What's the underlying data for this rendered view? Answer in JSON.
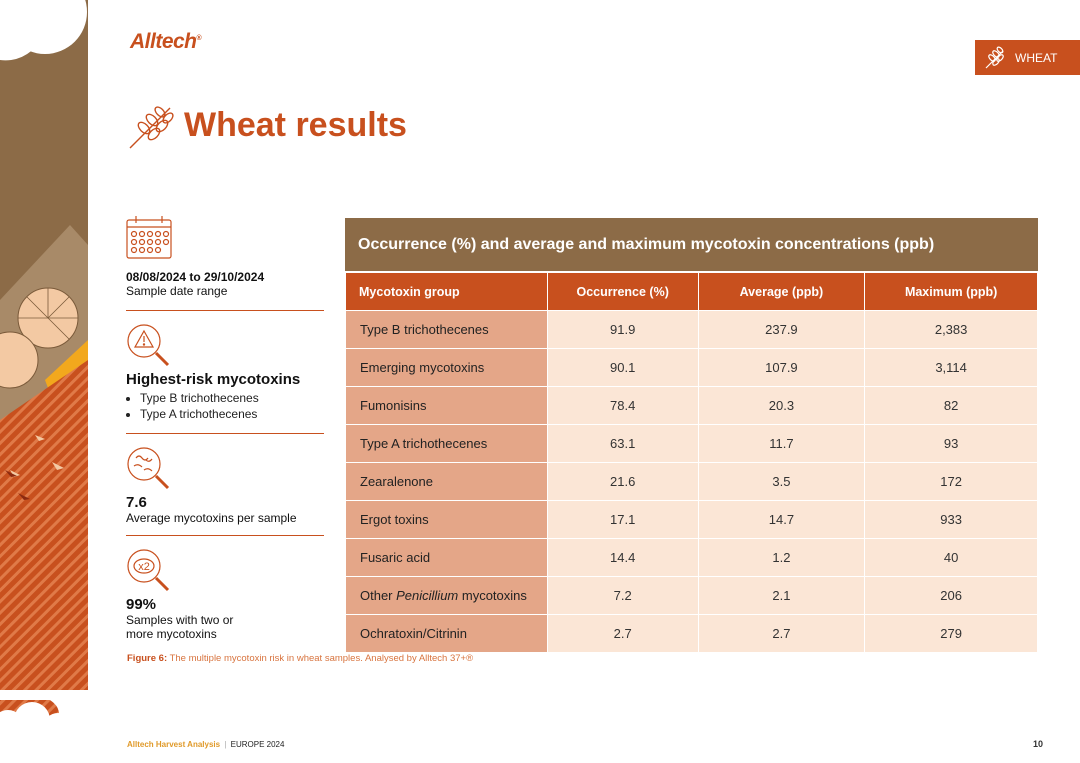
{
  "brand": {
    "logo_text": "Alltech",
    "logo_mark": "®"
  },
  "tag": {
    "label": "WHEAT",
    "icon": "wheat-icon"
  },
  "page_title": "Wheat results",
  "stats": {
    "date_range": {
      "value": "08/08/2024 to 29/10/2024",
      "label": "Sample date range"
    },
    "risk": {
      "heading": "Highest-risk mycotoxins",
      "items": [
        "Type B trichothecenes",
        "Type A trichothecenes"
      ]
    },
    "avg": {
      "value": "7.6",
      "label": "Average mycotoxins per sample"
    },
    "multi": {
      "value": "99%",
      "label_line1": "Samples with two or",
      "label_line2": "more mycotoxins",
      "icon_text": "x2"
    }
  },
  "table": {
    "title": "Occurrence (%) and average and maximum mycotoxin concentrations (ppb)",
    "headers": [
      "Mycotoxin group",
      "Occurrence (%)",
      "Average (ppb)",
      "Maximum (ppb)"
    ],
    "rows": [
      {
        "group": "Type B trichothecenes",
        "occurrence": "91.9",
        "average": "237.9",
        "maximum": "2,383"
      },
      {
        "group": "Emerging mycotoxins",
        "occurrence": "90.1",
        "average": "107.9",
        "maximum": "3,114"
      },
      {
        "group": "Fumonisins",
        "occurrence": "78.4",
        "average": "20.3",
        "maximum": "82"
      },
      {
        "group": "Type A trichothecenes",
        "occurrence": "63.1",
        "average": "11.7",
        "maximum": "93"
      },
      {
        "group": "Zearalenone",
        "occurrence": "21.6",
        "average": "3.5",
        "maximum": "172"
      },
      {
        "group": "Ergot toxins",
        "occurrence": "17.1",
        "average": "14.7",
        "maximum": "933"
      },
      {
        "group": "Fusaric acid",
        "occurrence": "14.4",
        "average": "1.2",
        "maximum": "40"
      },
      {
        "group_pre": "Other ",
        "group_italic": "Penicillium",
        "group_post": " mycotoxins",
        "occurrence": "7.2",
        "average": "2.1",
        "maximum": "206"
      },
      {
        "group": "Ochratoxin/Citrinin",
        "occurrence": "2.7",
        "average": "2.7",
        "maximum": "279"
      }
    ]
  },
  "caption": {
    "label": "Figure 6:",
    "text": " The multiple mycotoxin risk in wheat samples. Analysed by Alltech 37+®"
  },
  "footer": {
    "left_bold": "Alltech Harvest Analysis",
    "separator": "|",
    "right": "EUROPE 2024",
    "page_number": "10"
  },
  "colors": {
    "accent": "#c8501e",
    "brown": "#8c6b47",
    "cell_light": "#fbe6d6",
    "cell_first": "#e4a688",
    "footer_gold": "#e09a2a"
  }
}
